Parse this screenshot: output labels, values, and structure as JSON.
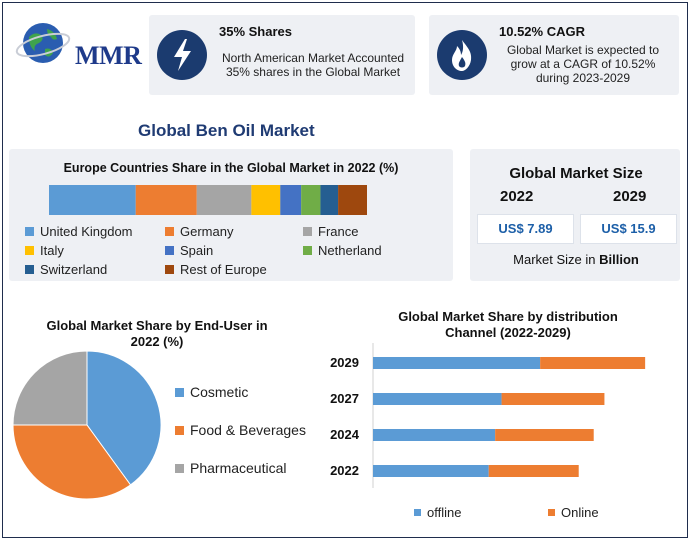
{
  "logo": {
    "text": "MMR"
  },
  "card1": {
    "title": "35% Shares",
    "text_line1": "North American Market Accounted",
    "text_line2": "35% shares in the Global Market",
    "icon": "lightning-icon"
  },
  "card2": {
    "title": "10.52% CAGR",
    "text_line1": "Global Market is expected to",
    "text_line2": "grow at a CAGR of 10.52%",
    "text_line3": "during 2023-2029",
    "icon": "flame-icon"
  },
  "main_title": "Global Ben Oil Market",
  "market_size": {
    "title": "Global Market Size",
    "year1": "2022",
    "year2": "2029",
    "value1": "US$ 7.89",
    "value2": "US$ 15.9",
    "note_prefix": "Market Size in ",
    "note_unit": "Billion"
  },
  "colors": {
    "blue": "#5b9bd5",
    "orange": "#ed7d31",
    "gray": "#a5a5a5",
    "yellow": "#ffc000",
    "spain": "#4472c4",
    "green": "#70ad47",
    "switzerland": "#255e91",
    "rest": "#9e480e",
    "navy": "#1b3b6f"
  },
  "chart_data": [
    {
      "type": "bar",
      "title": "Europe Countries Share in the Global Market in 2022 (%)",
      "stacked": true,
      "orientation": "horizontal",
      "series": [
        {
          "name": "United Kingdom",
          "value": 27,
          "color": "#5b9bd5"
        },
        {
          "name": "Germany",
          "value": 19,
          "color": "#ed7d31"
        },
        {
          "name": "France",
          "value": 17,
          "color": "#a5a5a5"
        },
        {
          "name": "Italy",
          "value": 9,
          "color": "#ffc000"
        },
        {
          "name": "Spain",
          "value": 6.5,
          "color": "#4472c4"
        },
        {
          "name": "Netherland",
          "value": 6,
          "color": "#70ad47"
        },
        {
          "name": "Switzerland",
          "value": 5.5,
          "color": "#255e91"
        },
        {
          "name": "Rest of Europe",
          "value": 9,
          "color": "#9e480e"
        }
      ]
    },
    {
      "type": "pie",
      "title_line1": "Global Market Share by End-User in",
      "title_line2": "2022 (%)",
      "slices": [
        {
          "name": "Cosmetic",
          "value": 40,
          "color": "#5b9bd5"
        },
        {
          "name": "Food & Beverages",
          "value": 35,
          "color": "#ed7d31"
        },
        {
          "name": "Pharmaceutical",
          "value": 25,
          "color": "#a5a5a5"
        }
      ]
    },
    {
      "type": "bar",
      "title_line1": "Global Market Share by distribution",
      "title_line2": "Channel (2022-2029)",
      "stacked": true,
      "orientation": "horizontal",
      "categories": [
        "2029",
        "2027",
        "2024",
        "2022"
      ],
      "series": [
        {
          "name": "offline",
          "color": "#5b9bd5",
          "values": [
            7.8,
            6.0,
            5.7,
            5.4
          ]
        },
        {
          "name": "Online",
          "color": "#ed7d31",
          "values": [
            4.9,
            4.8,
            4.6,
            4.2
          ]
        }
      ],
      "xlim": [
        0,
        14
      ]
    }
  ]
}
